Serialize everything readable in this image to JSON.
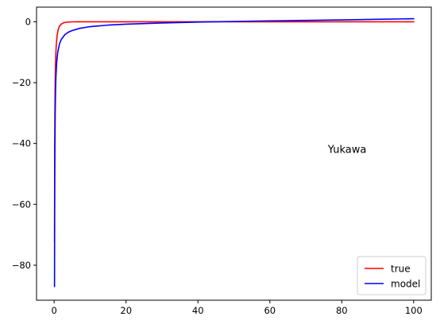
{
  "chart_data": {
    "type": "line",
    "title": "",
    "xlabel": "",
    "ylabel": "",
    "xlim": [
      -4.9,
      104.9
    ],
    "ylim": [
      -91.5,
      4.8
    ],
    "xticks": [
      0,
      20,
      40,
      60,
      80,
      100
    ],
    "yticks": [
      0,
      -20,
      -40,
      -60,
      -80
    ],
    "xtick_labels": [
      "0",
      "20",
      "40",
      "60",
      "80",
      "100"
    ],
    "ytick_labels": [
      "0",
      "−20",
      "−40",
      "−60",
      "−80"
    ],
    "grid": false,
    "legend_position": "bottom-right",
    "annotation": "Yukawa",
    "annotation_xy": [
      81.5,
      -41.8
    ],
    "series": [
      {
        "name": "true",
        "color": "#ff0000",
        "x": [
          0.1,
          0.15,
          0.2,
          0.3,
          0.4,
          0.5,
          0.6,
          0.8,
          1.0,
          1.2,
          1.5,
          2.0,
          2.5,
          3.0,
          4.0,
          5.0,
          7.0,
          10.0,
          20.0,
          40.0,
          60.0,
          80.0,
          100.0
        ],
        "y": [
          -72.0,
          -44.0,
          -30.0,
          -18.5,
          -13.0,
          -9.7,
          -7.4,
          -4.8,
          -3.3,
          -2.3,
          -1.45,
          -0.75,
          -0.4,
          -0.22,
          -0.08,
          -0.03,
          -0.01,
          0.0,
          0.0,
          0.0,
          0.0,
          0.0,
          0.0
        ]
      },
      {
        "name": "model",
        "color": "#0000ff",
        "x": [
          0.1,
          0.15,
          0.2,
          0.3,
          0.4,
          0.5,
          0.7,
          1.0,
          1.5,
          2.0,
          3.0,
          4.0,
          5.0,
          7.0,
          10.0,
          15.0,
          20.0,
          30.0,
          40.0,
          50.0,
          60.0,
          70.0,
          80.0,
          90.0,
          100.0
        ],
        "y": [
          -87.0,
          -58.0,
          -43.0,
          -29.0,
          -22.0,
          -18.0,
          -13.5,
          -10.0,
          -7.2,
          -5.8,
          -4.2,
          -3.4,
          -2.9,
          -2.2,
          -1.6,
          -1.1,
          -0.8,
          -0.4,
          -0.1,
          0.1,
          0.3,
          0.45,
          0.6,
          0.8,
          1.0
        ]
      }
    ]
  }
}
